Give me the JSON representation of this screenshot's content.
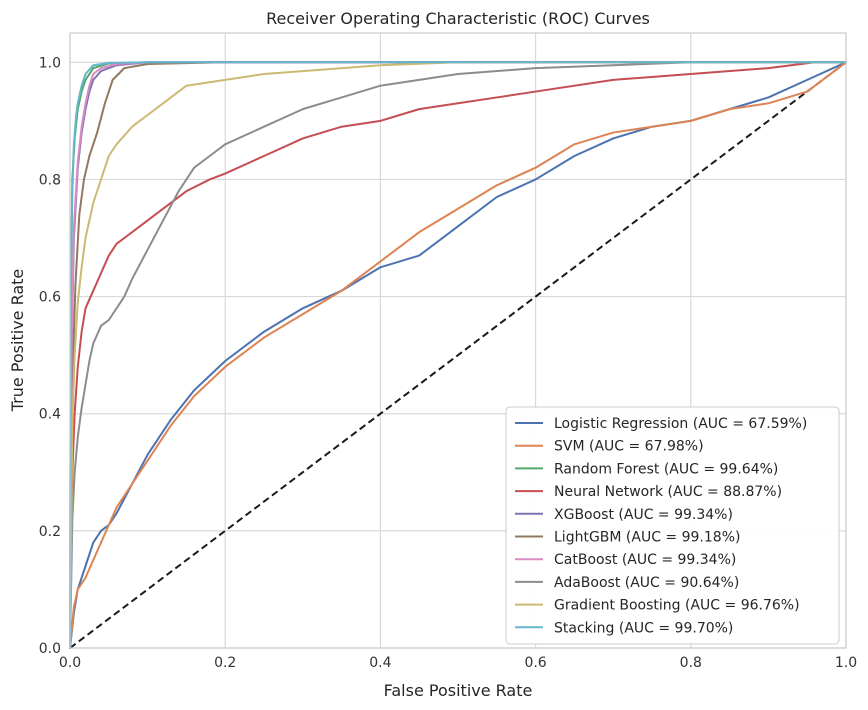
{
  "chart_data": {
    "type": "line",
    "title": "Receiver Operating Characteristic (ROC) Curves",
    "xlabel": "False Positive Rate",
    "ylabel": "True Positive Rate",
    "xlim": [
      0.0,
      1.0
    ],
    "ylim": [
      0.0,
      1.05
    ],
    "x_ticks": [
      "0.0",
      "0.2",
      "0.4",
      "0.6",
      "0.8",
      "1.0"
    ],
    "y_ticks": [
      "0.0",
      "0.2",
      "0.4",
      "0.6",
      "0.8",
      "1.0"
    ],
    "grid": true,
    "legend_position": "bottom-right",
    "reference_line": {
      "x": [
        0.0,
        1.0
      ],
      "y": [
        0.0,
        1.0
      ],
      "color": "#1a1a1a",
      "style": "dashed"
    },
    "series": [
      {
        "name": "Logistic Regression (AUC = 67.59%)",
        "color": "#4C72B0",
        "x": [
          0.0,
          0.005,
          0.01,
          0.02,
          0.03,
          0.04,
          0.05,
          0.06,
          0.08,
          0.1,
          0.13,
          0.16,
          0.2,
          0.25,
          0.3,
          0.35,
          0.4,
          0.45,
          0.5,
          0.55,
          0.6,
          0.65,
          0.7,
          0.75,
          0.8,
          0.85,
          0.9,
          0.95,
          1.0
        ],
        "y": [
          0.0,
          0.06,
          0.1,
          0.14,
          0.18,
          0.2,
          0.21,
          0.23,
          0.28,
          0.33,
          0.39,
          0.44,
          0.49,
          0.54,
          0.58,
          0.61,
          0.65,
          0.67,
          0.72,
          0.77,
          0.8,
          0.84,
          0.87,
          0.89,
          0.9,
          0.92,
          0.94,
          0.97,
          1.0
        ]
      },
      {
        "name": "SVM (AUC = 67.98%)",
        "color": "#DD8452",
        "x": [
          0.0,
          0.005,
          0.01,
          0.02,
          0.03,
          0.04,
          0.05,
          0.06,
          0.08,
          0.1,
          0.13,
          0.16,
          0.2,
          0.25,
          0.3,
          0.35,
          0.4,
          0.45,
          0.5,
          0.55,
          0.6,
          0.65,
          0.7,
          0.75,
          0.8,
          0.85,
          0.9,
          0.95,
          1.0
        ],
        "y": [
          0.0,
          0.07,
          0.1,
          0.12,
          0.15,
          0.18,
          0.21,
          0.24,
          0.28,
          0.32,
          0.38,
          0.43,
          0.48,
          0.53,
          0.57,
          0.61,
          0.66,
          0.71,
          0.75,
          0.79,
          0.82,
          0.86,
          0.88,
          0.89,
          0.9,
          0.92,
          0.93,
          0.95,
          1.0
        ]
      },
      {
        "name": "Random Forest (AUC = 99.64%)",
        "color": "#55A868",
        "x": [
          0.0,
          0.001,
          0.003,
          0.006,
          0.01,
          0.015,
          0.02,
          0.03,
          0.05,
          0.1,
          0.2,
          0.5,
          1.0
        ],
        "y": [
          0.0,
          0.6,
          0.8,
          0.87,
          0.92,
          0.95,
          0.97,
          0.99,
          0.998,
          1.0,
          1.0,
          1.0,
          1.0
        ]
      },
      {
        "name": "Neural Network (AUC = 88.87%)",
        "color": "#C44E52",
        "x": [
          0.0,
          0.003,
          0.006,
          0.01,
          0.015,
          0.02,
          0.03,
          0.04,
          0.05,
          0.06,
          0.08,
          0.1,
          0.12,
          0.15,
          0.18,
          0.2,
          0.25,
          0.3,
          0.35,
          0.4,
          0.45,
          0.5,
          0.55,
          0.6,
          0.7,
          0.8,
          0.9,
          0.96,
          1.0
        ],
        "y": [
          0.0,
          0.3,
          0.4,
          0.48,
          0.54,
          0.58,
          0.61,
          0.64,
          0.67,
          0.69,
          0.71,
          0.73,
          0.75,
          0.78,
          0.8,
          0.81,
          0.84,
          0.87,
          0.89,
          0.9,
          0.92,
          0.93,
          0.94,
          0.95,
          0.97,
          0.98,
          0.99,
          1.0,
          1.0
        ]
      },
      {
        "name": "XGBoost (AUC = 99.34%)",
        "color": "#8172B3",
        "x": [
          0.0,
          0.002,
          0.005,
          0.01,
          0.015,
          0.02,
          0.025,
          0.03,
          0.04,
          0.06,
          0.1,
          0.2,
          0.5,
          1.0
        ],
        "y": [
          0.0,
          0.5,
          0.7,
          0.82,
          0.88,
          0.92,
          0.95,
          0.97,
          0.985,
          0.995,
          1.0,
          1.0,
          1.0,
          1.0
        ]
      },
      {
        "name": "LightGBM (AUC = 99.18%)",
        "color": "#937860",
        "x": [
          0.0,
          0.003,
          0.007,
          0.012,
          0.018,
          0.025,
          0.035,
          0.045,
          0.055,
          0.07,
          0.1,
          0.2,
          0.5,
          1.0
        ],
        "y": [
          0.0,
          0.45,
          0.62,
          0.74,
          0.8,
          0.84,
          0.88,
          0.93,
          0.97,
          0.99,
          0.997,
          1.0,
          1.0,
          1.0
        ]
      },
      {
        "name": "CatBoost (AUC = 99.34%)",
        "color": "#DA8BC3",
        "x": [
          0.0,
          0.002,
          0.005,
          0.01,
          0.015,
          0.02,
          0.025,
          0.03,
          0.04,
          0.06,
          0.1,
          0.2,
          0.5,
          1.0
        ],
        "y": [
          0.0,
          0.52,
          0.72,
          0.83,
          0.89,
          0.93,
          0.96,
          0.98,
          0.99,
          0.997,
          1.0,
          1.0,
          1.0,
          1.0
        ]
      },
      {
        "name": "AdaBoost (AUC = 90.64%)",
        "color": "#8C8C8C",
        "x": [
          0.0,
          0.003,
          0.006,
          0.01,
          0.015,
          0.02,
          0.025,
          0.03,
          0.04,
          0.05,
          0.06,
          0.07,
          0.08,
          0.1,
          0.12,
          0.14,
          0.16,
          0.18,
          0.2,
          0.25,
          0.3,
          0.35,
          0.4,
          0.45,
          0.5,
          0.6,
          0.7,
          0.8,
          0.9,
          1.0
        ],
        "y": [
          0.0,
          0.22,
          0.3,
          0.36,
          0.41,
          0.45,
          0.49,
          0.52,
          0.55,
          0.56,
          0.58,
          0.6,
          0.63,
          0.68,
          0.73,
          0.78,
          0.82,
          0.84,
          0.86,
          0.89,
          0.92,
          0.94,
          0.96,
          0.97,
          0.98,
          0.99,
          0.995,
          1.0,
          1.0,
          1.0
        ]
      },
      {
        "name": "Gradient Boosting (AUC = 96.76%)",
        "color": "#CCB974",
        "x": [
          0.0,
          0.003,
          0.006,
          0.01,
          0.015,
          0.02,
          0.03,
          0.04,
          0.05,
          0.06,
          0.08,
          0.1,
          0.12,
          0.15,
          0.2,
          0.25,
          0.3,
          0.4,
          0.5,
          0.6,
          1.0
        ],
        "y": [
          0.0,
          0.38,
          0.5,
          0.59,
          0.65,
          0.7,
          0.76,
          0.8,
          0.84,
          0.86,
          0.89,
          0.91,
          0.93,
          0.96,
          0.97,
          0.98,
          0.985,
          0.995,
          1.0,
          1.0,
          1.0
        ]
      },
      {
        "name": "Stacking (AUC = 99.70%)",
        "color": "#64B5CD",
        "x": [
          0.0,
          0.001,
          0.003,
          0.005,
          0.008,
          0.01,
          0.015,
          0.02,
          0.03,
          0.05,
          0.1,
          0.2,
          0.5,
          1.0
        ],
        "y": [
          0.0,
          0.62,
          0.78,
          0.86,
          0.91,
          0.93,
          0.96,
          0.98,
          0.995,
          0.999,
          1.0,
          1.0,
          1.0,
          1.0
        ]
      }
    ]
  }
}
